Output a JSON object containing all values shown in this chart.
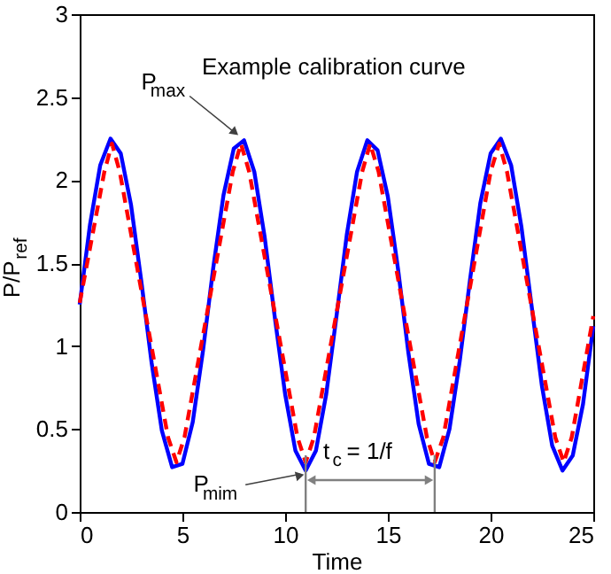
{
  "chart_data": {
    "type": "line",
    "title": "Example calibration curve",
    "xlabel": "Time",
    "ylabel": "P/P$_{ref}$",
    "xlim": [
      0,
      25
    ],
    "ylim": [
      0,
      3
    ],
    "xticks": [
      0,
      5,
      10,
      15,
      20,
      25
    ],
    "yticks": [
      0,
      0.5,
      1,
      1.5,
      2,
      2.5,
      3
    ],
    "series": [
      {
        "color": "#0000ff",
        "line_style": "solid",
        "x": [
          0,
          0.5,
          1,
          1.5,
          2,
          2.5,
          3,
          3.5,
          4,
          4.5,
          5,
          5.5,
          6,
          6.5,
          7,
          7.5,
          8,
          8.5,
          9,
          9.5,
          10,
          10.5,
          11,
          11.5,
          12,
          12.5,
          13,
          13.5,
          14,
          14.5,
          15,
          15.5,
          16,
          16.5,
          17,
          17.5,
          18,
          18.5,
          19,
          19.5,
          20,
          20.5,
          21,
          21.5,
          22,
          22.5,
          23,
          23.5,
          24,
          24.5,
          25
        ],
        "values": [
          1.25,
          1.73,
          2.09,
          2.25,
          2.16,
          1.85,
          1.39,
          0.9,
          0.49,
          0.27,
          0.29,
          0.54,
          0.97,
          1.47,
          1.91,
          2.19,
          2.24,
          2.05,
          1.66,
          1.17,
          0.71,
          0.37,
          0.25,
          0.37,
          0.71,
          1.18,
          1.67,
          2.05,
          2.24,
          2.18,
          1.9,
          1.46,
          0.96,
          0.53,
          0.29,
          0.27,
          0.5,
          0.91,
          1.4,
          1.86,
          2.16,
          2.25,
          2.09,
          1.72,
          1.24,
          0.76,
          0.4,
          0.25,
          0.34,
          0.65,
          1.12
        ]
      },
      {
        "color": "#ff0000",
        "line_style": "dashed",
        "x": [
          0,
          1.2,
          1.57,
          1.95,
          4.3,
          4.71,
          5.1,
          7.45,
          7.85,
          8.25,
          10.6,
          11.0,
          11.4,
          13.75,
          14.14,
          14.55,
          16.9,
          17.28,
          17.7,
          20.0,
          20.42,
          20.8,
          23.15,
          23.56,
          23.95,
          25
        ],
        "values": [
          1.26,
          2.05,
          2.22,
          2.05,
          0.45,
          0.3,
          0.45,
          2.05,
          2.22,
          2.05,
          0.45,
          0.3,
          0.45,
          2.05,
          2.22,
          2.05,
          0.45,
          0.3,
          0.45,
          2.05,
          2.22,
          2.05,
          0.45,
          0.3,
          0.45,
          1.18
        ]
      }
    ],
    "annotations": [
      {
        "text": "P$_{max}$",
        "x": 7.85,
        "y": 2.25
      },
      {
        "text": "P$_{mim}$",
        "x": 11.0,
        "y": 0.25
      },
      "t$_{c}$ = 1/f"
    ],
    "ref_lines": [
      {
        "axis": "x",
        "value": 11.0,
        "color": "#808080"
      },
      {
        "axis": "x",
        "value": 17.28,
        "color": "#808080"
      }
    ]
  }
}
